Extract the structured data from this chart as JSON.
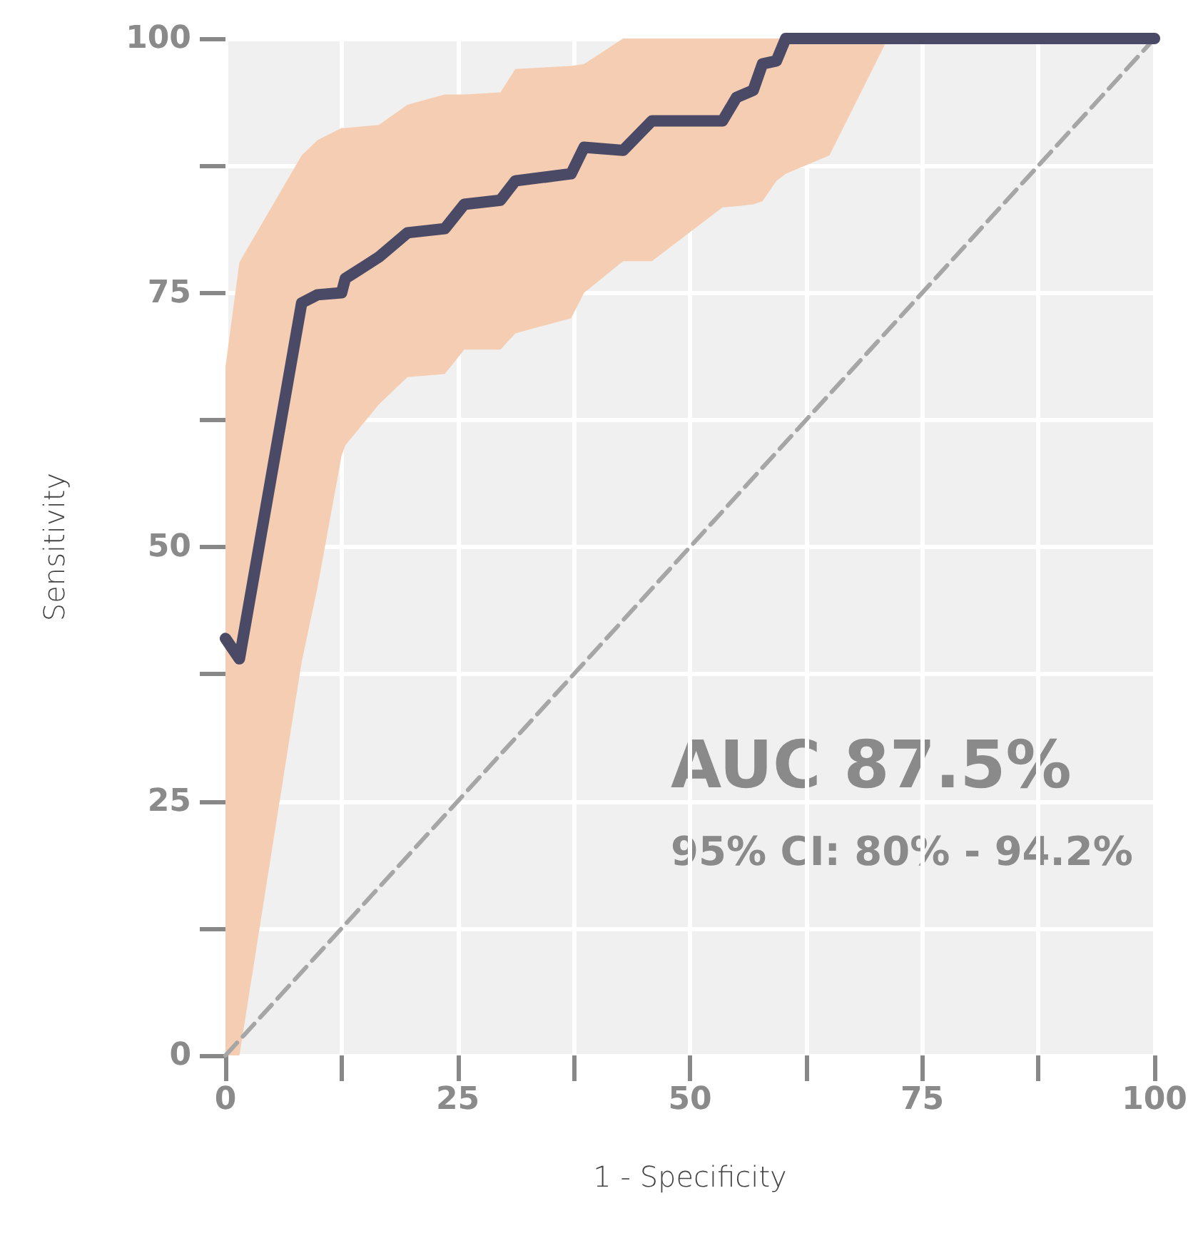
{
  "chart_data": {
    "type": "line",
    "xlabel": "1 - Specificity",
    "ylabel": "Sensitivity",
    "xlim": [
      0,
      100
    ],
    "ylim": [
      0,
      100
    ],
    "xticks": [
      0,
      {
        "value": 12.5,
        "label": null
      },
      25,
      {
        "value": 37.5,
        "label": null
      },
      50,
      {
        "value": 62.5,
        "label": null
      },
      75,
      {
        "value": 87.5,
        "label": null
      },
      100
    ],
    "yticks": [
      0,
      {
        "value": 12.5,
        "label": null
      },
      25,
      {
        "value": 37.5,
        "label": null
      },
      50,
      {
        "value": 62.5,
        "label": null
      },
      75,
      {
        "value": 87.5,
        "label": null
      },
      100
    ],
    "grid": true,
    "marker": "none",
    "series": [
      {
        "color": "#4a4a66",
        "x": [
          0,
          1.5,
          8.2,
          9.9,
          12.5,
          12.9,
          16.5,
          19.6,
          23.6,
          25.7,
          29.6,
          31.2,
          37.2,
          38.6,
          42.8,
          45.9,
          53.5,
          55,
          56.8,
          57.8,
          59.3,
          60.3,
          65,
          71.3,
          100
        ],
        "values": [
          41,
          39,
          74,
          74.8,
          75,
          76.4,
          78.5,
          80.9,
          81.3,
          83.7,
          84.1,
          86,
          86.7,
          89.3,
          89,
          91.9,
          91.9,
          94.2,
          94.9,
          97.5,
          97.8,
          100,
          100,
          100,
          100
        ],
        "lower": [
          0,
          0,
          38.7,
          46,
          59,
          60,
          64,
          66.7,
          67,
          69.4,
          69.4,
          71,
          72.5,
          75,
          78.1,
          78.1,
          83.4,
          83.5,
          83.7,
          84,
          86,
          86.7,
          88.5,
          100,
          100
        ],
        "upper": [
          67.7,
          78,
          88.5,
          90,
          91.2,
          91.2,
          91.5,
          93.5,
          94.5,
          94.5,
          94.7,
          97,
          97.3,
          97.5,
          100,
          100,
          100,
          100,
          100,
          100,
          100,
          100,
          100,
          100,
          100
        ]
      },
      {
        "color": "#a6a6a6",
        "line_style": "dashed",
        "x": [
          0,
          100
        ],
        "values": [
          0,
          100
        ]
      }
    ],
    "annotations": [
      "AUC 87.5%",
      "95% CI: 80% - 94.2%"
    ]
  }
}
